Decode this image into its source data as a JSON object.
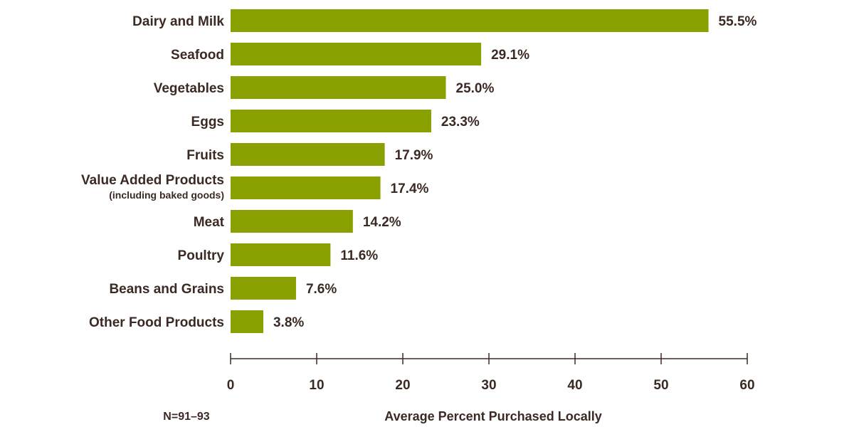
{
  "chart_data": {
    "type": "bar",
    "orientation": "horizontal",
    "categories": [
      {
        "label": "Dairy and Milk",
        "sublabel": ""
      },
      {
        "label": "Seafood",
        "sublabel": ""
      },
      {
        "label": "Vegetables",
        "sublabel": ""
      },
      {
        "label": "Eggs",
        "sublabel": ""
      },
      {
        "label": "Fruits",
        "sublabel": ""
      },
      {
        "label": "Value Added Products",
        "sublabel": "(including baked goods)"
      },
      {
        "label": "Meat",
        "sublabel": ""
      },
      {
        "label": "Poultry",
        "sublabel": ""
      },
      {
        "label": "Beans and Grains",
        "sublabel": ""
      },
      {
        "label": "Other Food Products",
        "sublabel": ""
      }
    ],
    "values": [
      55.5,
      29.1,
      25.0,
      23.3,
      17.9,
      17.4,
      14.2,
      11.6,
      7.6,
      3.8
    ],
    "value_labels": [
      "55.5%",
      "29.1%",
      "25.0%",
      "23.3%",
      "17.9%",
      "17.4%",
      "14.2%",
      "11.6%",
      "7.6%",
      "3.8%"
    ],
    "xlabel": "Average Percent Purchased Locally",
    "xlim": [
      0,
      60
    ],
    "xticks": [
      0,
      10,
      20,
      30,
      40,
      50,
      60
    ],
    "note": "N=91–93",
    "bar_color": "#8aa000",
    "text_color": "#3b2a24",
    "grid": false
  }
}
